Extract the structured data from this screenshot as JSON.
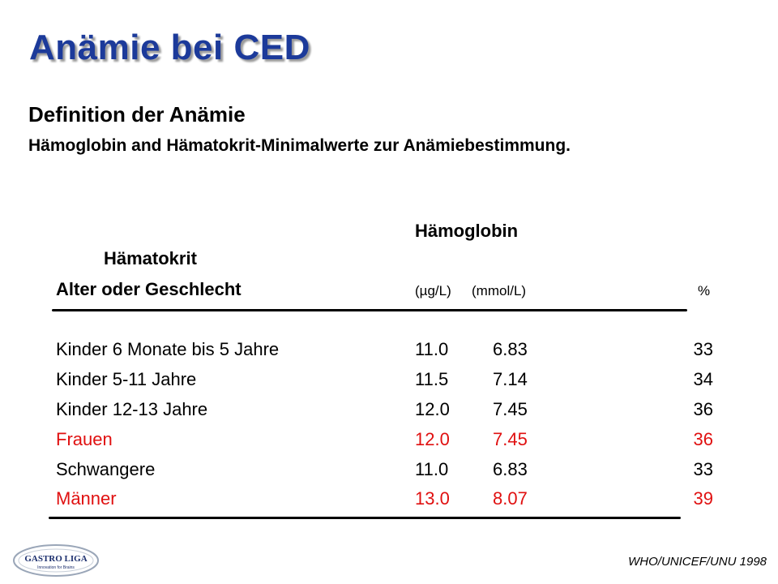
{
  "title": "Anämie bei CED",
  "subtitle": "Definition der Anämie",
  "description": "Hämoglobin and Hämatokrit-Minimalwerte zur Anämiebestimmung.",
  "table": {
    "header_hemoglobin": "Hämoglobin",
    "header_hematocrit": "Hämatokrit",
    "header_age": "Alter oder Geschlecht",
    "unit_gl": "(µg/L)",
    "unit_mmol": "(mmol/L)",
    "unit_percent": "%",
    "rows": [
      {
        "label": "Kinder 6 Monate bis 5 Jahre",
        "g": "11.0",
        "mmol": "6.83",
        "pct": "33"
      },
      {
        "label": "Kinder 5-11 Jahre",
        "g": "11.5",
        "mmol": "7.14",
        "pct": "34"
      },
      {
        "label": "Kinder 12-13 Jahre",
        "g": "12.0",
        "mmol": "7.45",
        "pct": "36"
      },
      {
        "label": "Frauen",
        "g": "12.0",
        "mmol": "7.45",
        "pct": "36"
      },
      {
        "label": "Schwangere",
        "g": "11.0",
        "mmol": "6.83",
        "pct": "33"
      },
      {
        "label": "Männer",
        "g": "13.0",
        "mmol": "8.07",
        "pct": "39"
      }
    ]
  },
  "logo": {
    "text": "GASTRO LIGA",
    "tagline": "Innovation for Brains"
  },
  "source": "WHO/UNICEF/UNU 1998",
  "colors": {
    "title": "#1c3a9a",
    "highlight": "#e01010"
  }
}
